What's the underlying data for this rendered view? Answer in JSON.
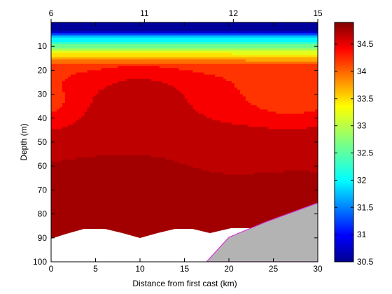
{
  "chart_data": {
    "type": "heatmap",
    "subtype": "filled-contour",
    "title": "",
    "xlabel": "Distance from first cast (km)",
    "ylabel": "Depth (m)",
    "xlim": [
      0,
      30
    ],
    "ylim": [
      0,
      100
    ],
    "y_reversed": true,
    "x_ticks": [
      "0",
      "5",
      "10",
      "15",
      "20",
      "25",
      "30"
    ],
    "y_ticks": [
      "10",
      "20",
      "30",
      "40",
      "50",
      "60",
      "70",
      "80",
      "90",
      "100"
    ],
    "top_axis": {
      "ticks": [
        {
          "x": 0,
          "label": "6"
        },
        {
          "x": 10.5,
          "label": "11"
        },
        {
          "x": 20.5,
          "label": "12"
        },
        {
          "x": 30,
          "label": "15"
        }
      ]
    },
    "colorbar": {
      "range": [
        30.5,
        34.9
      ],
      "ticks": [
        "30.5",
        "31",
        "31.5",
        "32",
        "32.5",
        "33",
        "33.5",
        "34",
        "34.5"
      ],
      "colormap": "jet"
    },
    "contour_levels": [
      30.5,
      30.75,
      31,
      31.25,
      31.5,
      31.75,
      32,
      32.25,
      32.5,
      32.75,
      33,
      33.25,
      33.5,
      33.75,
      34,
      34.25,
      34.5,
      34.75
    ],
    "grid": false,
    "masked_regions": [
      {
        "name": "seabed",
        "color": "#b3b3b3",
        "outline": "#d633d6"
      },
      {
        "name": "no-data",
        "color": "#ffffff"
      }
    ]
  }
}
